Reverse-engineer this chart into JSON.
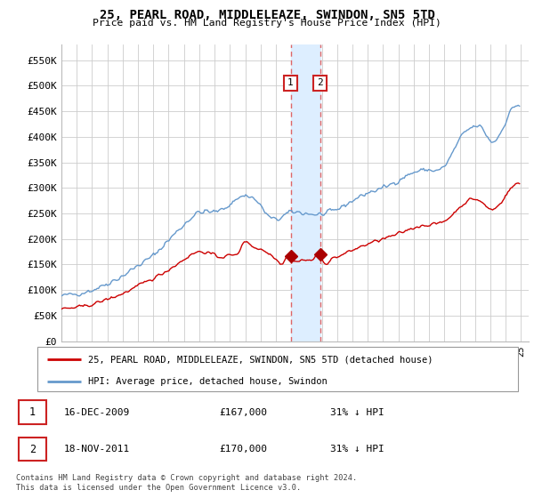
{
  "title": "25, PEARL ROAD, MIDDLELEAZE, SWINDON, SN5 5TD",
  "subtitle": "Price paid vs. HM Land Registry's House Price Index (HPI)",
  "legend_line1": "25, PEARL ROAD, MIDDLELEAZE, SWINDON, SN5 5TD (detached house)",
  "legend_line2": "HPI: Average price, detached house, Swindon",
  "transaction1_date": "16-DEC-2009",
  "transaction1_price": "£167,000",
  "transaction1_hpi": "31% ↓ HPI",
  "transaction2_date": "18-NOV-2011",
  "transaction2_price": "£170,000",
  "transaction2_hpi": "31% ↓ HPI",
  "footer": "Contains HM Land Registry data © Crown copyright and database right 2024.\nThis data is licensed under the Open Government Licence v3.0.",
  "ylim": [
    0,
    580000
  ],
  "yticks": [
    0,
    50000,
    100000,
    150000,
    200000,
    250000,
    300000,
    350000,
    400000,
    450000,
    500000,
    550000
  ],
  "ytick_labels": [
    "£0",
    "£50K",
    "£100K",
    "£150K",
    "£200K",
    "£250K",
    "£300K",
    "£350K",
    "£400K",
    "£450K",
    "£500K",
    "£550K"
  ],
  "xlim_start": 1995.0,
  "xlim_end": 2025.5,
  "transaction1_x": 2009.96,
  "transaction1_y": 167000,
  "transaction2_x": 2011.88,
  "transaction2_y": 170000,
  "line_color_red": "#cc0000",
  "line_color_blue": "#6699cc",
  "marker_color_red": "#aa0000",
  "grid_color": "#cccccc",
  "background_color": "#ffffff",
  "highlight_color": "#ddeeff",
  "vline_color": "#dd6666",
  "box_border_color": "#cc2222"
}
